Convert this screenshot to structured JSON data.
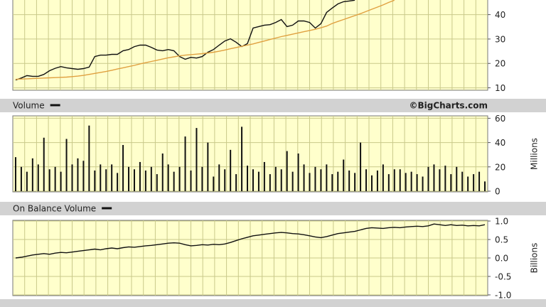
{
  "chart_data": [
    {
      "type": "line",
      "ylim": [
        9,
        46
      ],
      "yticks": [
        10,
        20,
        30,
        40
      ],
      "grid": true,
      "series": [
        {
          "color": "#111111",
          "values": [
            13.2,
            14,
            15,
            14.7,
            14.7,
            15.5,
            17,
            18,
            18.7,
            18.2,
            17.9,
            17.6,
            17.9,
            18.5,
            22.8,
            23.4,
            23.4,
            23.7,
            23.7,
            25.2,
            25.7,
            26.9,
            27.5,
            27.5,
            26.6,
            25.5,
            25.2,
            25.7,
            25.2,
            22.8,
            21.7,
            22.5,
            22.2,
            22.8,
            24.6,
            25.7,
            27.5,
            29.2,
            30.1,
            28.7,
            26.9,
            28.1,
            34.5,
            35.1,
            35.7,
            35.9,
            36.8,
            38,
            35.1,
            35.7,
            37.4,
            37.4,
            36.8,
            34.5,
            36.3,
            40.9,
            42.7,
            44.4,
            45.3,
            45.6,
            45.9,
            null,
            null,
            null,
            null,
            null,
            null,
            null,
            null,
            null,
            null,
            null,
            null,
            null,
            null,
            null,
            null,
            null,
            null,
            null,
            null,
            null,
            null,
            null
          ]
        },
        {
          "color": "#e0a040",
          "values": [
            13.5,
            13.6,
            13.7,
            13.8,
            13.9,
            14.0,
            14.1,
            14.2,
            14.3,
            14.4,
            14.6,
            14.8,
            15.1,
            15.5,
            15.9,
            16.3,
            16.7,
            17.2,
            17.7,
            18.2,
            18.7,
            19.2,
            19.8,
            20.3,
            20.8,
            21.3,
            21.8,
            22.3,
            22.7,
            23.1,
            23.4,
            23.6,
            23.8,
            24.0,
            24.3,
            24.6,
            25.0,
            25.5,
            26.0,
            26.5,
            27.0,
            27.5,
            28.0,
            28.6,
            29.2,
            29.8,
            30.4,
            31.0,
            31.5,
            32.0,
            32.5,
            33.0,
            33.5,
            34.0,
            34.6,
            35.3,
            36.4,
            37.2,
            38.0,
            38.8,
            39.6,
            40.4,
            41.3,
            42.2,
            43.1,
            44.0,
            45.0,
            45.9,
            null,
            null,
            null,
            null,
            null,
            null,
            null,
            null,
            null,
            null,
            null,
            null,
            null,
            null,
            null,
            null
          ]
        }
      ]
    },
    {
      "type": "bar",
      "title": "Volume",
      "annotation": "©BigCharts.com",
      "ylabel": "Millions",
      "ylim": [
        0,
        62
      ],
      "yticks": [
        0,
        20,
        40,
        60
      ],
      "grid": true,
      "series": [
        {
          "color": "#111111",
          "values": [
            28,
            20,
            16,
            27,
            22,
            44,
            18,
            20,
            16,
            43,
            22,
            27,
            25,
            54,
            17,
            22,
            18,
            22,
            15,
            38,
            20,
            18,
            24,
            17,
            20,
            14,
            31,
            22,
            16,
            20,
            45,
            17,
            52,
            20,
            40,
            12,
            22,
            18,
            34,
            14,
            53,
            21,
            18,
            16,
            24,
            14,
            20,
            18,
            33,
            16,
            31,
            22,
            15,
            20,
            18,
            22,
            14,
            16,
            26,
            17,
            15,
            40,
            18,
            13,
            17,
            22,
            14,
            18,
            18,
            15,
            16,
            14,
            12,
            20,
            22,
            18,
            21,
            14,
            20,
            16,
            12,
            14,
            16,
            8
          ]
        }
      ]
    },
    {
      "type": "line",
      "title": "On Balance Volume",
      "ylabel": "Billions",
      "ylim": [
        -1.02,
        1.02
      ],
      "yticks": [
        {
          "value": -1,
          "label": "-1.0"
        },
        {
          "value": -0.5,
          "label": "-0.5"
        },
        {
          "value": 0,
          "label": "0.0"
        },
        {
          "value": 0.5,
          "label": "0.5"
        },
        {
          "value": 1,
          "label": "1.0"
        }
      ],
      "grid": true,
      "series": [
        {
          "color": "#111111",
          "values": [
            0.0,
            0.02,
            0.05,
            0.08,
            0.1,
            0.12,
            0.1,
            0.13,
            0.15,
            0.14,
            0.16,
            0.18,
            0.2,
            0.22,
            0.24,
            0.22,
            0.25,
            0.27,
            0.25,
            0.28,
            0.3,
            0.29,
            0.31,
            0.33,
            0.34,
            0.36,
            0.38,
            0.4,
            0.41,
            0.4,
            0.36,
            0.33,
            0.34,
            0.36,
            0.35,
            0.37,
            0.36,
            0.38,
            0.42,
            0.47,
            0.52,
            0.56,
            0.6,
            0.62,
            0.64,
            0.66,
            0.68,
            0.69,
            0.68,
            0.66,
            0.65,
            0.63,
            0.6,
            0.57,
            0.55,
            0.58,
            0.62,
            0.66,
            0.68,
            0.7,
            0.72,
            0.76,
            0.8,
            0.82,
            0.81,
            0.8,
            0.82,
            0.83,
            0.82,
            0.84,
            0.85,
            0.86,
            0.85,
            0.87,
            0.92,
            0.9,
            0.88,
            0.9,
            0.88,
            0.89,
            0.87,
            0.88,
            0.87,
            0.9
          ]
        }
      ]
    }
  ]
}
